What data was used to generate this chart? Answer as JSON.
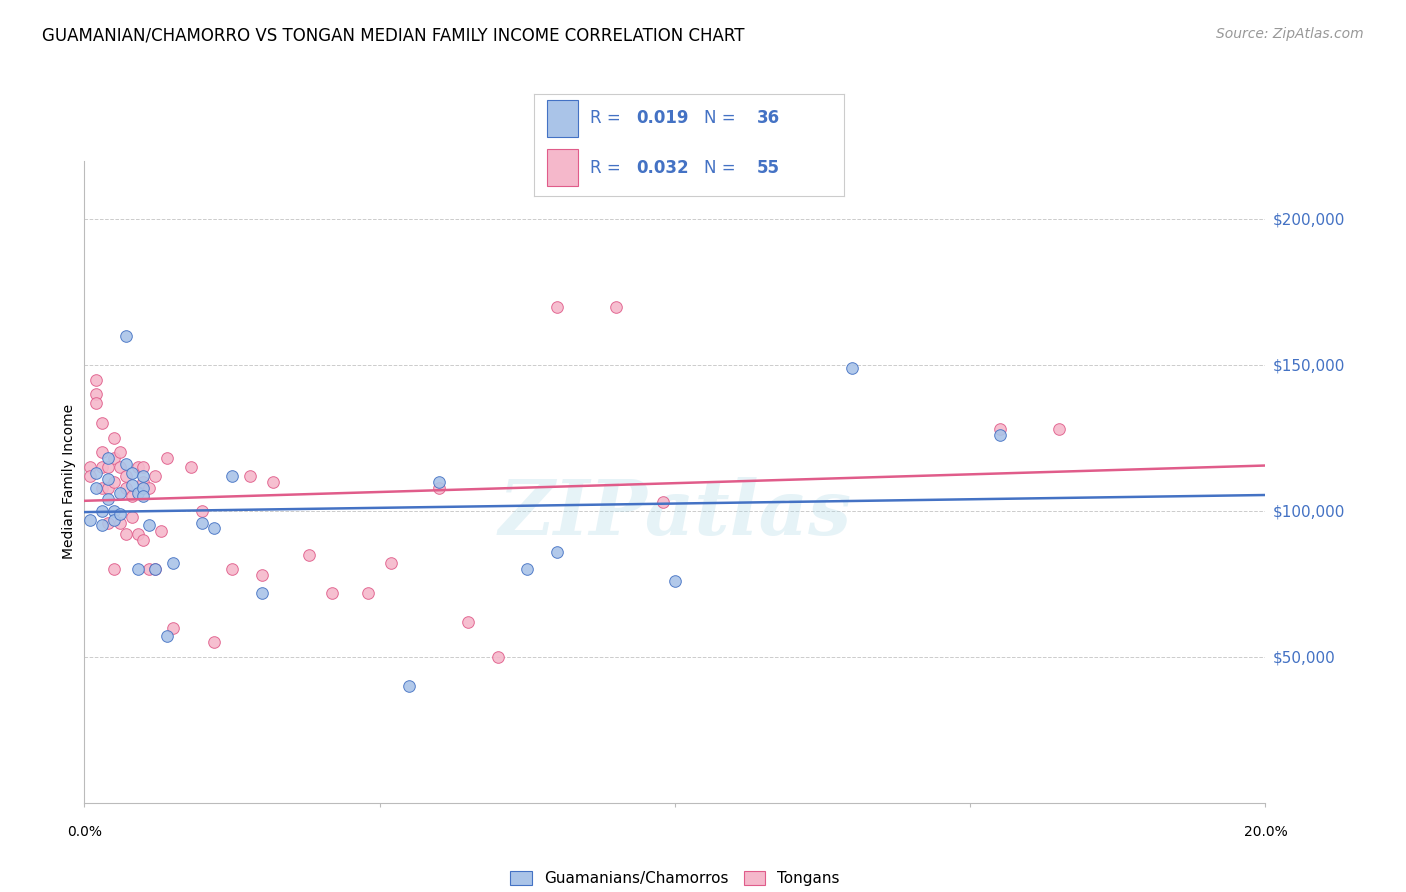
{
  "title": "GUAMANIAN/CHAMORRO VS TONGAN MEDIAN FAMILY INCOME CORRELATION CHART",
  "source": "Source: ZipAtlas.com",
  "ylabel": "Median Family Income",
  "legend_label1": "Guamanians/Chamorros",
  "legend_label2": "Tongans",
  "r1": "0.019",
  "n1": "36",
  "r2": "0.032",
  "n2": "55",
  "color1": "#aac4e8",
  "color2": "#f5b8cb",
  "line_color1": "#4472c4",
  "line_color2": "#e05c8a",
  "watermark": "ZIPatlas",
  "guam_x": [
    0.001,
    0.002,
    0.002,
    0.003,
    0.003,
    0.004,
    0.004,
    0.004,
    0.005,
    0.005,
    0.006,
    0.006,
    0.007,
    0.007,
    0.008,
    0.008,
    0.009,
    0.009,
    0.01,
    0.01,
    0.01,
    0.011,
    0.012,
    0.014,
    0.015,
    0.02,
    0.022,
    0.025,
    0.03,
    0.055,
    0.06,
    0.075,
    0.08,
    0.1,
    0.13,
    0.155
  ],
  "guam_y": [
    97000,
    113000,
    108000,
    100000,
    95000,
    118000,
    111000,
    104000,
    100000,
    97000,
    106000,
    99000,
    160000,
    116000,
    113000,
    109000,
    106000,
    80000,
    112000,
    108000,
    105000,
    95000,
    80000,
    57000,
    82000,
    96000,
    94000,
    112000,
    72000,
    40000,
    110000,
    80000,
    86000,
    76000,
    149000,
    126000
  ],
  "tong_x": [
    0.001,
    0.001,
    0.002,
    0.002,
    0.002,
    0.003,
    0.003,
    0.003,
    0.003,
    0.004,
    0.004,
    0.004,
    0.005,
    0.005,
    0.005,
    0.005,
    0.006,
    0.006,
    0.006,
    0.007,
    0.007,
    0.007,
    0.008,
    0.008,
    0.009,
    0.009,
    0.01,
    0.01,
    0.01,
    0.011,
    0.011,
    0.012,
    0.012,
    0.013,
    0.014,
    0.015,
    0.018,
    0.02,
    0.022,
    0.025,
    0.028,
    0.03,
    0.032,
    0.038,
    0.042,
    0.048,
    0.052,
    0.06,
    0.065,
    0.07,
    0.08,
    0.09,
    0.098,
    0.155,
    0.165
  ],
  "tong_y": [
    115000,
    112000,
    145000,
    140000,
    137000,
    130000,
    120000,
    115000,
    108000,
    115000,
    108000,
    96000,
    125000,
    118000,
    110000,
    80000,
    120000,
    115000,
    96000,
    112000,
    108000,
    92000,
    105000,
    98000,
    115000,
    92000,
    115000,
    110000,
    90000,
    108000,
    80000,
    112000,
    80000,
    93000,
    118000,
    60000,
    115000,
    100000,
    55000,
    80000,
    112000,
    78000,
    110000,
    85000,
    72000,
    72000,
    82000,
    108000,
    62000,
    50000,
    170000,
    170000,
    103000,
    128000,
    128000
  ],
  "xlim": [
    0.0,
    0.2
  ],
  "ylim": [
    0,
    220000
  ],
  "ytick_values": [
    50000,
    100000,
    150000,
    200000
  ],
  "ytick_labels": [
    "$50,000",
    "$100,000",
    "$150,000",
    "$200,000"
  ],
  "background_color": "#ffffff",
  "grid_color": "#cccccc",
  "title_fontsize": 13,
  "source_fontsize": 10
}
